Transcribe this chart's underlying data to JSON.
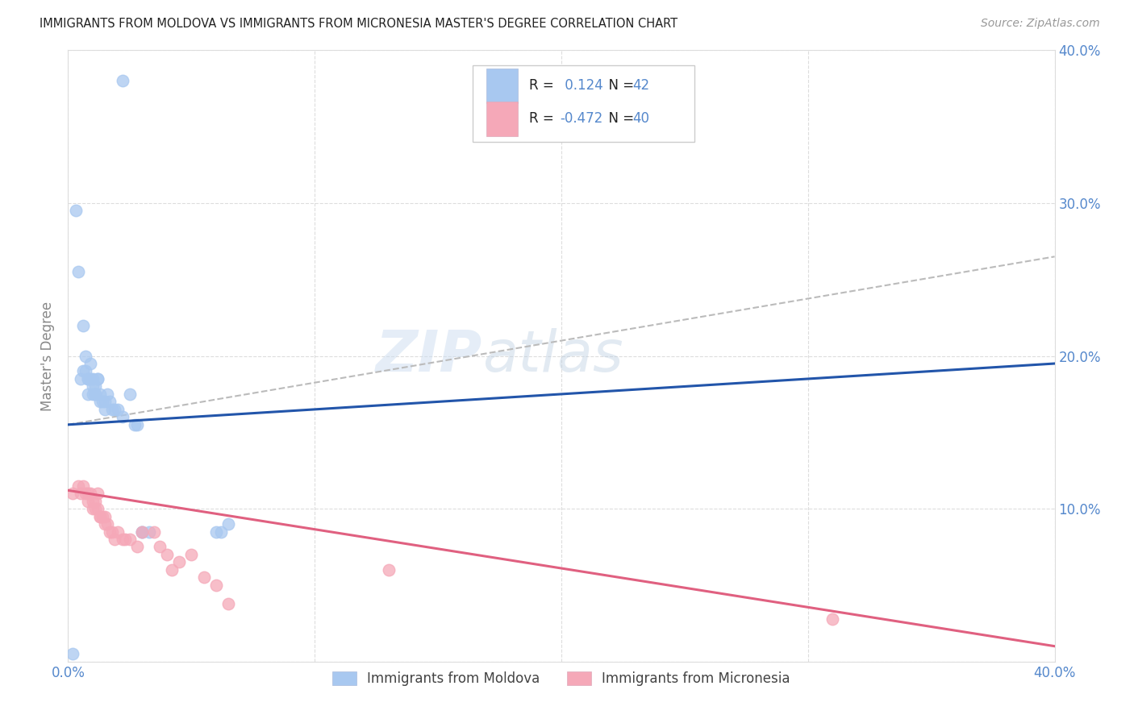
{
  "title": "IMMIGRANTS FROM MOLDOVA VS IMMIGRANTS FROM MICRONESIA MASTER'S DEGREE CORRELATION CHART",
  "source": "Source: ZipAtlas.com",
  "ylabel": "Master's Degree",
  "xmin": 0.0,
  "xmax": 0.4,
  "ymin": 0.0,
  "ymax": 0.4,
  "moldova_color": "#A8C8F0",
  "micronesia_color": "#F5A8B8",
  "moldova_line_color": "#2255AA",
  "micronesia_line_color": "#E06080",
  "trend_line_color": "#BBBBBB",
  "R_moldova": 0.124,
  "N_moldova": 42,
  "R_micronesia": -0.472,
  "N_micronesia": 40,
  "tick_color": "#5588CC",
  "moldova_scatter_x": [
    0.002,
    0.003,
    0.004,
    0.005,
    0.006,
    0.006,
    0.007,
    0.007,
    0.008,
    0.008,
    0.008,
    0.009,
    0.009,
    0.01,
    0.01,
    0.01,
    0.011,
    0.011,
    0.011,
    0.012,
    0.012,
    0.013,
    0.013,
    0.014,
    0.015,
    0.015,
    0.016,
    0.017,
    0.018,
    0.019,
    0.02,
    0.022,
    0.025,
    0.027,
    0.028,
    0.03,
    0.03,
    0.033,
    0.06,
    0.062,
    0.065,
    0.022
  ],
  "moldova_scatter_y": [
    0.005,
    0.295,
    0.255,
    0.185,
    0.22,
    0.19,
    0.2,
    0.19,
    0.185,
    0.185,
    0.175,
    0.195,
    0.185,
    0.185,
    0.18,
    0.175,
    0.18,
    0.175,
    0.175,
    0.185,
    0.185,
    0.175,
    0.17,
    0.17,
    0.17,
    0.165,
    0.175,
    0.17,
    0.165,
    0.165,
    0.165,
    0.16,
    0.175,
    0.155,
    0.155,
    0.085,
    0.085,
    0.085,
    0.085,
    0.085,
    0.09,
    0.38
  ],
  "micronesia_scatter_x": [
    0.002,
    0.004,
    0.005,
    0.006,
    0.007,
    0.008,
    0.008,
    0.009,
    0.01,
    0.01,
    0.011,
    0.011,
    0.012,
    0.012,
    0.013,
    0.013,
    0.014,
    0.015,
    0.015,
    0.016,
    0.017,
    0.018,
    0.019,
    0.02,
    0.022,
    0.023,
    0.025,
    0.028,
    0.03,
    0.035,
    0.037,
    0.04,
    0.042,
    0.045,
    0.05,
    0.055,
    0.06,
    0.065,
    0.13,
    0.31
  ],
  "micronesia_scatter_y": [
    0.11,
    0.115,
    0.11,
    0.115,
    0.11,
    0.11,
    0.105,
    0.11,
    0.105,
    0.1,
    0.105,
    0.1,
    0.11,
    0.1,
    0.095,
    0.095,
    0.095,
    0.09,
    0.095,
    0.09,
    0.085,
    0.085,
    0.08,
    0.085,
    0.08,
    0.08,
    0.08,
    0.075,
    0.085,
    0.085,
    0.075,
    0.07,
    0.06,
    0.065,
    0.07,
    0.055,
    0.05,
    0.038,
    0.06,
    0.028
  ],
  "moldova_trend_x": [
    0.0,
    0.4
  ],
  "moldova_trend_y": [
    0.155,
    0.195
  ],
  "micronesia_trend_x": [
    0.0,
    0.4
  ],
  "micronesia_trend_y": [
    0.112,
    0.01
  ],
  "dashed_trend_x": [
    0.0,
    0.4
  ],
  "dashed_trend_y": [
    0.155,
    0.265
  ],
  "watermark_zip": "ZIP",
  "watermark_atlas": "atlas",
  "bg_color": "#FFFFFF",
  "grid_color": "#DDDDDD"
}
